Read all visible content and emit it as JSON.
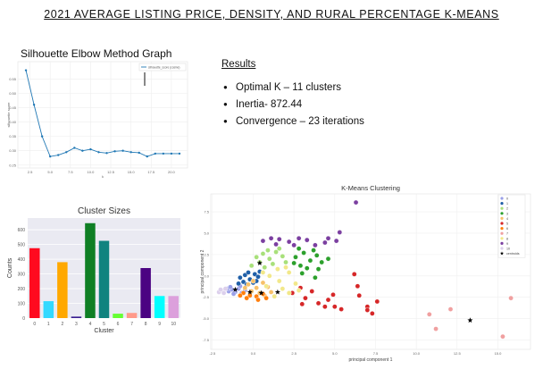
{
  "page": {
    "title": "2021 AVERAGE LISTING PRICE, DENSITY, AND RURAL PERCENTAGE K-MEANS"
  },
  "elbow": {
    "heading": "Silhouette Elbow Method Graph"
  },
  "results": {
    "heading": "Results",
    "items": [
      "Optimal K – 11 clusters",
      "Inertia- 872.44",
      "Convergence – 23 iterations"
    ]
  },
  "chart_data": [
    {
      "type": "line",
      "title": "",
      "xlabel": "k",
      "ylabel": "silhouette score",
      "x": [
        2,
        3,
        4,
        5,
        6,
        7,
        8,
        9,
        10,
        11,
        12,
        13,
        14,
        15,
        16,
        17,
        18,
        19,
        20,
        21
      ],
      "series": [
        {
          "name": "silhouette_score (cosine)",
          "values": [
            0.58,
            0.46,
            0.35,
            0.28,
            0.285,
            0.295,
            0.31,
            0.3,
            0.305,
            0.295,
            0.292,
            0.298,
            0.3,
            0.295,
            0.293,
            0.28,
            0.29,
            0.29,
            0.29,
            0.29
          ]
        }
      ],
      "xlim": [
        1,
        22
      ],
      "ylim": [
        0.24,
        0.61
      ],
      "yticks": [
        0.25,
        0.3,
        0.35,
        0.4,
        0.45,
        0.5,
        0.55
      ],
      "xticks": [
        2.5,
        5.0,
        7.5,
        10.0,
        12.5,
        15.0,
        17.5,
        20.0
      ],
      "color": "#1f77b4"
    },
    {
      "type": "bar",
      "title": "Cluster Sizes",
      "xlabel": "Cluster",
      "ylabel": "Counts",
      "categories": [
        "0",
        "1",
        "2",
        "3",
        "4",
        "5",
        "6",
        "7",
        "8",
        "9",
        "10"
      ],
      "values": [
        475,
        115,
        380,
        10,
        645,
        525,
        30,
        35,
        340,
        150,
        150
      ],
      "colors": [
        "#ff0a1f",
        "#33d9ff",
        "#ffa800",
        "#3b1f91",
        "#0f7f24",
        "#10837f",
        "#66ff33",
        "#ff9a8a",
        "#4b0382",
        "#00ffff",
        "#dca0dc"
      ],
      "ylim": [
        0,
        680
      ],
      "yticks": [
        0,
        100,
        200,
        300,
        400,
        500,
        600
      ]
    },
    {
      "type": "scatter",
      "title": "K-Means Clustering",
      "xlabel": "principal component 1",
      "ylabel": "principal component 2",
      "xlim": [
        -2.6,
        17.0
      ],
      "ylim": [
        -8.6,
        9.6
      ],
      "xticks": [
        -2.5,
        0.0,
        2.5,
        5.0,
        7.5,
        10.0,
        12.5,
        15.0
      ],
      "yticks": [
        -7.5,
        -5.0,
        -2.5,
        0.0,
        2.5,
        5.0,
        7.5
      ],
      "legend": {
        "placement": "top-right",
        "entries": [
          "0",
          "1",
          "2",
          "3",
          "4",
          "5",
          "6",
          "7",
          "8",
          "9",
          "10",
          "centroids"
        ]
      },
      "colors": [
        "#9aa0e8",
        "#1f5fa8",
        "#a8e07a",
        "#2ca02c",
        "#f7c06a",
        "#d62728",
        "#ff7f0e",
        "#f0a0a0",
        "#f2e88a",
        "#7b3fa0",
        "#dcd0ec"
      ],
      "series": [
        {
          "name": "0",
          "cluster": 0,
          "points": [
            [
              -1.5,
              -1.8
            ],
            [
              -1.3,
              -1.6
            ],
            [
              -1.1,
              -1.9
            ],
            [
              -0.9,
              -1.5
            ],
            [
              -1.6,
              -1.5
            ],
            [
              -0.7,
              -2.0
            ],
            [
              -1.2,
              -2.1
            ],
            [
              -0.5,
              -1.7
            ],
            [
              -1.4,
              -1.3
            ],
            [
              -0.8,
              -1.2
            ]
          ]
        },
        {
          "name": "1",
          "cluster": 1,
          "points": [
            [
              -0.8,
              -0.2
            ],
            [
              -0.5,
              0.1
            ],
            [
              -0.2,
              -0.4
            ],
            [
              0.1,
              0.2
            ],
            [
              -0.6,
              -0.7
            ],
            [
              0.3,
              -0.1
            ],
            [
              0.0,
              -0.8
            ],
            [
              -0.3,
              0.4
            ],
            [
              0.4,
              0.5
            ],
            [
              -0.9,
              -0.9
            ],
            [
              0.2,
              -0.6
            ],
            [
              -0.4,
              -1.0
            ]
          ]
        },
        {
          "name": "2",
          "cluster": 2,
          "points": [
            [
              0.2,
              2.2
            ],
            [
              0.6,
              2.6
            ],
            [
              1.0,
              2.0
            ],
            [
              1.4,
              2.8
            ],
            [
              0.4,
              1.6
            ],
            [
              1.8,
              2.3
            ],
            [
              0.9,
              3.0
            ],
            [
              1.2,
              1.4
            ],
            [
              -0.1,
              1.2
            ],
            [
              2.0,
              1.6
            ],
            [
              0.7,
              1.0
            ],
            [
              1.6,
              3.2
            ]
          ]
        },
        {
          "name": "3",
          "cluster": 3,
          "points": [
            [
              2.6,
              2.2
            ],
            [
              3.1,
              2.7
            ],
            [
              3.5,
              1.8
            ],
            [
              2.9,
              1.2
            ],
            [
              3.9,
              2.4
            ],
            [
              4.2,
              1.6
            ],
            [
              3.3,
              0.9
            ],
            [
              2.5,
              1.5
            ],
            [
              4.6,
              2.0
            ],
            [
              3.7,
              3.0
            ],
            [
              2.8,
              3.2
            ],
            [
              4.0,
              0.8
            ],
            [
              3.0,
              0.3
            ],
            [
              3.8,
              -0.2
            ]
          ]
        },
        {
          "name": "4",
          "cluster": 4,
          "points": [
            [
              -0.3,
              -1.0
            ],
            [
              0.2,
              -1.4
            ],
            [
              0.6,
              -0.8
            ],
            [
              -0.1,
              -1.8
            ],
            [
              0.9,
              -1.3
            ],
            [
              0.4,
              -2.0
            ],
            [
              -0.5,
              -1.4
            ],
            [
              1.1,
              -1.9
            ],
            [
              0.0,
              -0.6
            ],
            [
              0.7,
              -2.3
            ]
          ]
        },
        {
          "name": "5",
          "cluster": 5,
          "points": [
            [
              2.4,
              -2.0
            ],
            [
              3.2,
              -2.6
            ],
            [
              4.0,
              -3.2
            ],
            [
              4.6,
              -2.8
            ],
            [
              5.0,
              -3.6
            ],
            [
              3.6,
              -1.8
            ],
            [
              6.2,
              0.2
            ],
            [
              6.4,
              -1.2
            ],
            [
              6.5,
              -2.3
            ],
            [
              7.0,
              -3.6
            ],
            [
              7.3,
              -4.4
            ],
            [
              7.0,
              -4.0
            ],
            [
              7.6,
              -3.0
            ],
            [
              2.9,
              -1.4
            ],
            [
              4.4,
              -3.6
            ],
            [
              5.4,
              -3.9
            ],
            [
              3.0,
              -3.3
            ],
            [
              4.9,
              -2.2
            ]
          ]
        },
        {
          "name": "6",
          "cluster": 6,
          "points": [
            [
              -0.6,
              -2.0
            ],
            [
              -0.2,
              -2.3
            ],
            [
              0.2,
              -2.4
            ],
            [
              0.6,
              -2.1
            ],
            [
              -0.4,
              -2.6
            ],
            [
              0.3,
              -2.8
            ],
            [
              -0.8,
              -2.3
            ],
            [
              0.8,
              -2.6
            ]
          ]
        },
        {
          "name": "7",
          "cluster": 7,
          "points": [
            [
              10.8,
              -4.5
            ],
            [
              12.1,
              -3.9
            ],
            [
              11.2,
              -6.2
            ],
            [
              15.3,
              -7.1
            ],
            [
              15.8,
              -2.6
            ]
          ]
        },
        {
          "name": "8",
          "cluster": 8,
          "points": [
            [
              1.0,
              0.0
            ],
            [
              1.6,
              -0.6
            ],
            [
              2.2,
              0.4
            ],
            [
              1.8,
              -1.5
            ],
            [
              1.3,
              -2.4
            ],
            [
              2.6,
              -0.9
            ],
            [
              0.8,
              -1.2
            ],
            [
              2.2,
              -2.0
            ],
            [
              1.5,
              0.8
            ],
            [
              2.0,
              1.0
            ],
            [
              0.6,
              0.4
            ],
            [
              2.8,
              -1.7
            ]
          ]
        },
        {
          "name": "9",
          "cluster": 9,
          "points": [
            [
              6.3,
              8.6
            ],
            [
              0.6,
              4.1
            ],
            [
              1.1,
              4.4
            ],
            [
              1.6,
              4.3
            ],
            [
              2.2,
              4.0
            ],
            [
              2.8,
              4.4
            ],
            [
              3.3,
              4.2
            ],
            [
              2.5,
              3.6
            ],
            [
              1.4,
              3.7
            ],
            [
              3.8,
              3.6
            ],
            [
              4.4,
              3.9
            ],
            [
              5.1,
              4.1
            ],
            [
              5.3,
              5.1
            ],
            [
              4.6,
              4.4
            ]
          ]
        },
        {
          "name": "10",
          "cluster": 10,
          "points": [
            [
              -2.1,
              -1.9
            ],
            [
              -1.9,
              -1.7
            ],
            [
              -1.8,
              -2.0
            ],
            [
              -1.7,
              -1.5
            ],
            [
              -2.0,
              -1.6
            ]
          ]
        }
      ],
      "centroids": [
        [
          -1.1,
          -1.6
        ],
        [
          0.4,
          1.5
        ],
        [
          -0.2,
          -1.9
        ],
        [
          0.5,
          -2.0
        ],
        [
          1.5,
          -1.9
        ],
        [
          13.3,
          -5.2
        ]
      ]
    }
  ]
}
